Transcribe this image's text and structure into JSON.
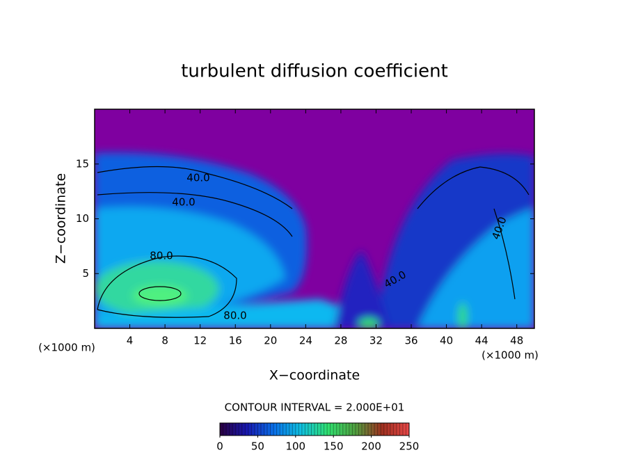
{
  "chart_data": {
    "type": "contour",
    "title": "turbulent diffusion coefficient",
    "x_label": "X−coordinate",
    "y_label": "Z−coordinate",
    "x_unit": "(×1000 m)",
    "x_unit_right": "(×1000 m)",
    "xlim": [
      0,
      50
    ],
    "xticks": [
      4,
      8,
      12,
      16,
      20,
      24,
      28,
      32,
      36,
      40,
      44,
      48
    ],
    "ylim": [
      0,
      20
    ],
    "yticks": [
      5,
      10,
      15
    ],
    "contour_labels": [
      "40.0",
      "40.0",
      "80.0",
      "80.0",
      "40.0",
      "40.0"
    ],
    "contour_interval": "CONTOUR INTERVAL = 2.000E+01",
    "clim": [
      0,
      250
    ],
    "cticks": [
      0,
      50,
      100,
      150,
      200,
      250
    ],
    "colormap": [
      "#2a0040",
      "#1818b0",
      "#0a70e8",
      "#10c0e0",
      "#30e070",
      "#50a040",
      "#a03020",
      "#e84848"
    ]
  }
}
